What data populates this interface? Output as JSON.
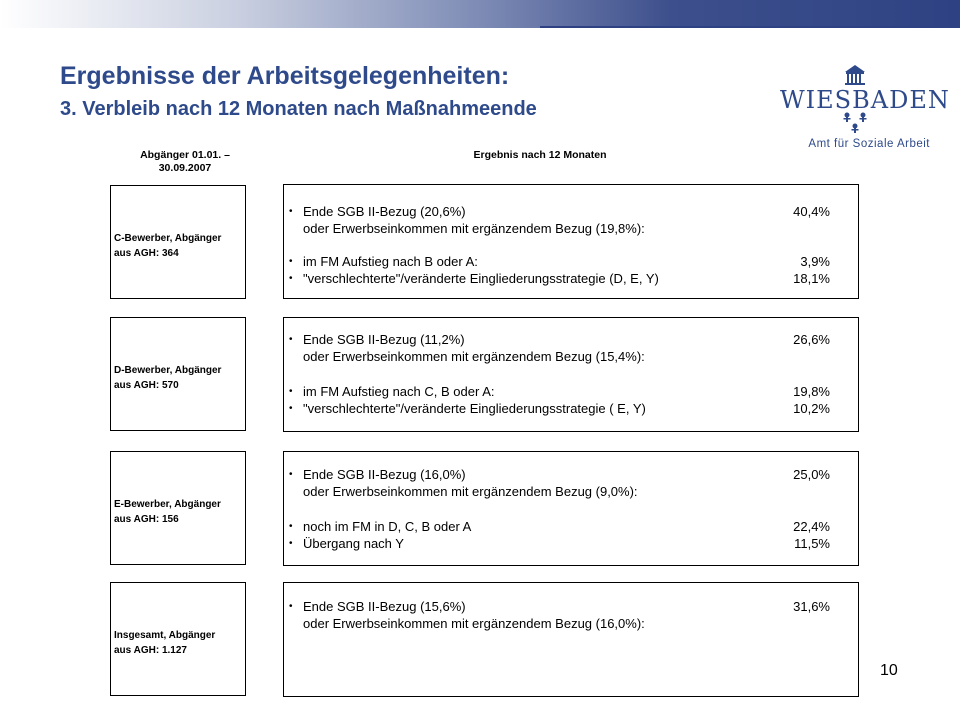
{
  "slide": {
    "title": "Ergebnisse der Arbeitsgelegenheiten:",
    "subtitle_bold": "3. Verbleib nach 12 Monaten nach Maßnahmeende",
    "page_number": "10"
  },
  "logo": {
    "wordmark": "WIESBADEN",
    "department": "Amt für Soziale Arbeit",
    "crest_icon": "city-hall-crest-icon"
  },
  "columns": {
    "left_header_line1": "Abgänger 01.01. –",
    "left_header_line2": "30.09.2007",
    "right_header": "Ergebnis nach 12 Monaten"
  },
  "groups": [
    {
      "label_line1": "C-Bewerber, Abgänger",
      "label_line2": "aus AGH: 364",
      "lines": [
        {
          "bullet": "•",
          "text": "Ende SGB II-Bezug (20,6%)",
          "value": "40,4%"
        },
        {
          "bullet": "",
          "text": "oder Erwerbseinkommen mit ergänzendem Bezug (19,8%):",
          "value": ""
        },
        {
          "bullet": "•",
          "text": "im FM Aufstieg nach B oder A:",
          "value": "3,9%"
        },
        {
          "bullet": "•",
          "text": "\"verschlechterte\"/veränderte Eingliederungsstrategie (D, E,  Y)",
          "value": "18,1%"
        }
      ]
    },
    {
      "label_line1": "D-Bewerber, Abgänger",
      "label_line2": "aus AGH: 570",
      "lines": [
        {
          "bullet": "•",
          "text": "Ende SGB II-Bezug (11,2%)",
          "value": "26,6%"
        },
        {
          "bullet": "",
          "text": "oder Erwerbseinkommen mit ergänzendem Bezug (15,4%):",
          "value": ""
        },
        {
          "bullet": "•",
          "text": "im FM Aufstieg nach C, B oder A:",
          "value": "19,8%"
        },
        {
          "bullet": "•",
          "text": "\"verschlechterte\"/veränderte Eingliederungsstrategie ( E, Y)",
          "value": "10,2%"
        }
      ]
    },
    {
      "label_line1": "E-Bewerber, Abgänger",
      "label_line2": "aus AGH: 156",
      "lines": [
        {
          "bullet": "•",
          "text": "Ende SGB II-Bezug (16,0%)",
          "value": "25,0%"
        },
        {
          "bullet": "",
          "text": "oder Erwerbseinkommen mit ergänzendem Bezug (9,0%):",
          "value": ""
        },
        {
          "bullet": "•",
          "text": "noch im FM in D, C, B oder A",
          "value": "22,4%"
        },
        {
          "bullet": "•",
          "text": "Übergang nach Y",
          "value": "11,5%"
        }
      ]
    },
    {
      "label_line1": "Insgesamt, Abgänger",
      "label_line2": "aus AGH: 1.127",
      "lines": [
        {
          "bullet": "•",
          "text": "Ende SGB II-Bezug (15,6%)",
          "value": "31,6%"
        },
        {
          "bullet": "",
          "text": "oder Erwerbseinkommen mit ergänzendem Bezug (16,0%):",
          "value": ""
        }
      ]
    }
  ]
}
